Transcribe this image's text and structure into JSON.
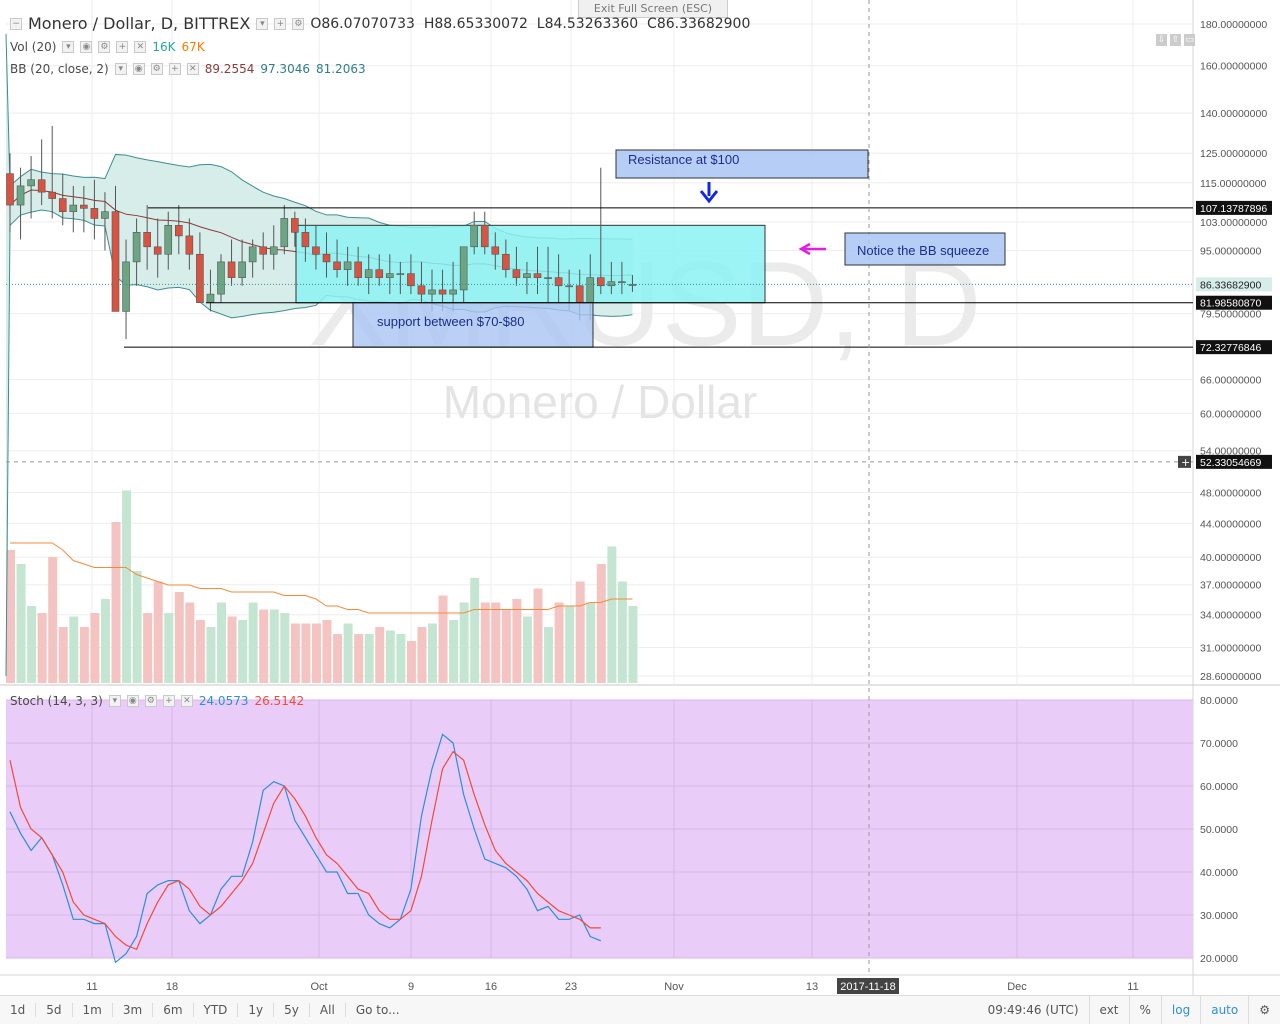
{
  "header": {
    "title": "Monero / Dollar, D, BITTREX",
    "ohlc": {
      "o_label": "O",
      "o": "86.07070733",
      "h_label": "H",
      "h": "88.65330072",
      "l_label": "L",
      "l": "84.53263360",
      "c_label": "C",
      "c": "86.33682900"
    },
    "exit_fullscreen": "Exit Full Screen (ESC)"
  },
  "legend": {
    "vol": {
      "name": "Vol (20)",
      "v1": "16K",
      "v2": "67K"
    },
    "bb": {
      "name": "BB (20, close, 2)",
      "v1": "89.2554",
      "v2": "97.3046",
      "v3": "81.2063"
    },
    "stoch": {
      "name": "Stoch (14, 3, 3)",
      "v1": "24.0573",
      "v2": "26.5142"
    }
  },
  "colors": {
    "up": "#6ba583",
    "down": "#d75442",
    "vol_up": "#c5e5d3",
    "vol_down": "#f3c4c1",
    "bb_fill": "#d7ede9",
    "bb_line": "#3e8d92",
    "basis": "#8b3a3a",
    "vol_ma": "#f58b3a",
    "stoch_k": "#2d8fd6",
    "stoch_d": "#ef4b3a",
    "stoch_bg": "#e9cdf8",
    "rect_cyan": "#8cf2f2",
    "rect_blue": "#a9c5f3",
    "arrow_blue": "#1027e6",
    "arrow_magenta": "#e020e0"
  },
  "watermark": {
    "symbol": "XMRUSD, D",
    "name": "Monero / Dollar"
  },
  "annotations": {
    "resistance": "Resistance at $100",
    "support": "support between $70-$80",
    "squeeze": "Notice the BB squeeze"
  },
  "price_axis": {
    "labels": [
      "180.00000000",
      "160.00000000",
      "140.00000000",
      "125.00000000",
      "115.00000000",
      "103.00000000",
      "95.00000000",
      "79.50000000",
      "66.00000000",
      "60.00000000",
      "54.00000000",
      "48.00000000",
      "44.00000000",
      "40.00000000",
      "37.00000000",
      "34.00000000",
      "31.00000000",
      "28.60000000"
    ],
    "tags": [
      {
        "value": "107.13787896",
        "kind": "dark"
      },
      {
        "value": "86.33682900",
        "kind": "cur"
      },
      {
        "value": "81.98580870",
        "kind": "dark"
      },
      {
        "value": "72.32776846",
        "kind": "dark"
      },
      {
        "value": "52.33054669",
        "kind": "dark"
      }
    ]
  },
  "stoch_axis": {
    "labels": [
      "80.0000",
      "70.0000",
      "60.0000",
      "50.0000",
      "40.0000",
      "30.0000",
      "20.0000"
    ]
  },
  "time_axis": {
    "labels": [
      "11",
      "18",
      "Oct",
      "9",
      "16",
      "23",
      "Nov",
      "13",
      "Dec",
      "11"
    ],
    "cursor": "2017-11-18"
  },
  "bottom_bar": {
    "intervals": [
      "1d",
      "5d",
      "1m",
      "3m",
      "6m",
      "YTD",
      "1y",
      "5y",
      "All"
    ],
    "goto": "Go to...",
    "time": "09:49:46 (UTC)",
    "right": [
      "ext",
      "%",
      "log",
      "auto"
    ]
  },
  "chart_data": {
    "type": "candlestick",
    "title": "Monero / Dollar, D, BITTREX",
    "candles": [
      [
        118,
        125,
        100,
        108
      ],
      [
        108,
        120,
        98,
        114
      ],
      [
        114,
        124,
        104,
        116
      ],
      [
        116,
        130,
        108,
        112
      ],
      [
        112,
        135,
        104,
        110
      ],
      [
        110,
        118,
        102,
        106
      ],
      [
        106,
        114,
        100,
        108
      ],
      [
        108,
        114,
        100,
        107
      ],
      [
        107,
        116,
        98,
        104
      ],
      [
        104,
        112,
        95,
        106
      ],
      [
        106,
        114,
        80,
        80
      ],
      [
        80,
        98,
        74,
        92
      ],
      [
        92,
        104,
        86,
        100
      ],
      [
        100,
        108,
        90,
        96
      ],
      [
        96,
        104,
        88,
        94
      ],
      [
        94,
        106,
        90,
        102
      ],
      [
        102,
        108,
        94,
        99
      ],
      [
        99,
        104,
        90,
        94
      ],
      [
        94,
        100,
        82,
        82
      ],
      [
        82,
        90,
        80,
        84
      ],
      [
        84,
        94,
        82,
        92
      ],
      [
        92,
        98,
        86,
        88
      ],
      [
        88,
        98,
        86,
        92
      ],
      [
        92,
        98,
        88,
        96
      ],
      [
        96,
        100,
        90,
        94
      ],
      [
        94,
        102,
        90,
        96
      ],
      [
        96,
        108,
        94,
        104
      ],
      [
        104,
        106,
        96,
        100
      ],
      [
        100,
        104,
        92,
        96
      ],
      [
        96,
        102,
        90,
        94
      ],
      [
        94,
        100,
        88,
        92
      ],
      [
        92,
        98,
        88,
        90
      ],
      [
        90,
        96,
        86,
        92
      ],
      [
        92,
        96,
        86,
        88
      ],
      [
        88,
        94,
        84,
        90
      ],
      [
        90,
        94,
        86,
        88
      ],
      [
        88,
        94,
        84,
        89
      ],
      [
        89,
        92,
        84,
        89
      ],
      [
        89,
        94,
        84,
        86
      ],
      [
        86,
        92,
        82,
        84
      ],
      [
        84,
        90,
        80,
        85
      ],
      [
        85,
        90,
        80,
        84
      ],
      [
        84,
        92,
        80,
        85
      ],
      [
        85,
        96,
        82,
        96
      ],
      [
        96,
        106,
        94,
        102
      ],
      [
        102,
        106,
        94,
        96
      ],
      [
        96,
        100,
        90,
        94
      ],
      [
        94,
        98,
        88,
        90
      ],
      [
        90,
        96,
        86,
        88
      ],
      [
        88,
        92,
        84,
        89
      ],
      [
        89,
        96,
        84,
        88
      ],
      [
        88,
        96,
        82,
        88
      ],
      [
        88,
        94,
        82,
        86
      ],
      [
        86,
        90,
        80,
        86
      ],
      [
        86,
        90,
        78,
        82
      ],
      [
        82,
        94,
        78,
        88
      ],
      [
        88,
        120,
        84,
        86
      ],
      [
        86,
        92,
        84,
        87
      ],
      [
        87,
        92,
        84,
        87
      ],
      [
        86.07,
        88.65,
        84.53,
        86.34
      ]
    ],
    "volume": [
      38,
      34,
      22,
      20,
      36,
      16,
      19,
      16,
      20,
      24,
      46,
      55,
      32,
      20,
      29,
      20,
      26,
      23,
      18,
      16,
      23,
      19,
      18,
      23,
      21,
      21,
      20,
      17,
      17,
      17,
      18,
      14,
      17,
      14,
      14,
      16,
      15,
      14,
      12,
      16,
      17,
      25,
      18,
      23,
      30,
      23,
      23,
      21,
      24,
      19,
      27,
      16,
      23,
      22,
      29,
      23,
      34,
      39,
      29,
      22
    ],
    "volume_ma": [
      40,
      40,
      40,
      40,
      40,
      38,
      35,
      34,
      33,
      33,
      33,
      33,
      31,
      30,
      29,
      28,
      28,
      28,
      27,
      27,
      27,
      26,
      26,
      26,
      26,
      26,
      25,
      25,
      25,
      24,
      22,
      22,
      21,
      21,
      20,
      20,
      20,
      20,
      20,
      20,
      20,
      20,
      20,
      20,
      21,
      21,
      21,
      21,
      21,
      21,
      21,
      21,
      22,
      22,
      22,
      23,
      23,
      24,
      24,
      24
    ],
    "stoch_k": [
      54,
      49,
      45,
      48,
      44,
      37,
      29,
      29,
      28,
      28,
      19,
      21,
      25,
      35,
      37,
      38,
      38,
      31,
      28,
      30,
      36,
      39,
      39,
      47,
      59,
      61,
      60,
      52,
      48,
      44,
      40,
      40,
      35,
      35,
      30,
      28,
      27,
      29,
      36,
      53,
      64,
      72,
      70,
      58,
      50,
      43,
      42,
      41,
      39,
      36,
      31,
      32,
      29,
      29,
      30,
      25,
      24
    ],
    "stoch_d": [
      66,
      55,
      50,
      48,
      44,
      40,
      33,
      30,
      29,
      28,
      25,
      23,
      22,
      28,
      33,
      37,
      38,
      36,
      32,
      30,
      32,
      35,
      38,
      42,
      49,
      56,
      60,
      57,
      53,
      48,
      44,
      42,
      39,
      36,
      35,
      31,
      29,
      29,
      31,
      39,
      52,
      64,
      68,
      66,
      58,
      51,
      45,
      42,
      40,
      38,
      35,
      33,
      31,
      30,
      29,
      27,
      27
    ],
    "price_ylim": [
      28.6,
      180
    ],
    "stoch_ylim": [
      20,
      80
    ],
    "levels": [
      107.13787896,
      86.336829,
      81.9858087,
      72.32776846
    ],
    "dashed_level": 52.33054669
  }
}
